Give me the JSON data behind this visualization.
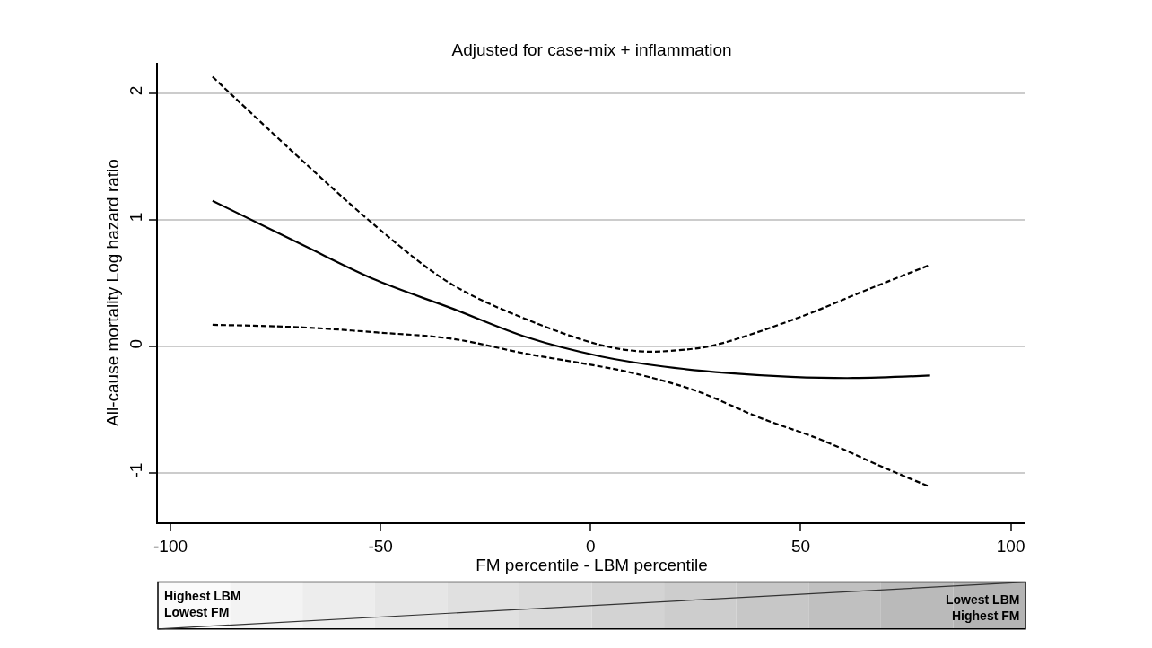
{
  "chart_data": {
    "type": "line",
    "title": "Adjusted for case-mix + inflammation",
    "xlabel": "FM percentile - LBM percentile",
    "ylabel": "All-cause mortality Log hazard ratio",
    "series": [
      {
        "color": "#000000",
        "line_style": "dashed",
        "x": [
          -90,
          -50.8,
          -33,
          -15,
          2.5,
          12.4,
          21,
          29.5,
          49.7,
          66,
          80.5
        ],
        "values": [
          2.13,
          0.94,
          0.49,
          0.21,
          0.01,
          -0.04,
          -0.03,
          0.01,
          0.23,
          0.45,
          0.64
        ]
      },
      {
        "color": "#000000",
        "line_style": "solid",
        "x": [
          -90,
          -68.5,
          -50.8,
          -33,
          -15,
          2.5,
          17.5,
          32.7,
          47.6,
          62.5,
          80.8
        ],
        "values": [
          1.15,
          0.8,
          0.52,
          0.3,
          0.07,
          -0.08,
          -0.16,
          -0.21,
          -0.24,
          -0.25,
          -0.23
        ]
      },
      {
        "color": "#000000",
        "line_style": "dashed",
        "x": [
          -90,
          -68.5,
          -50.8,
          -33,
          -15,
          2.5,
          10,
          25,
          40,
          55,
          70,
          80.8
        ],
        "values": [
          0.17,
          0.15,
          0.11,
          0.06,
          -0.06,
          -0.16,
          -0.21,
          -0.35,
          -0.56,
          -0.74,
          -0.96,
          -1.11
        ]
      }
    ],
    "xlim": [
      -103,
      103.5
    ],
    "xticks": [
      -100,
      -50,
      0,
      50,
      100
    ],
    "ylim": [
      -1.39,
      2.24
    ],
    "yticks": [
      -1,
      0,
      1,
      2
    ],
    "grid": "y",
    "marker": "none",
    "annotations": [
      "Highest LBM",
      "Lowest FM",
      "Lowest LBM",
      "Highest FM"
    ]
  }
}
